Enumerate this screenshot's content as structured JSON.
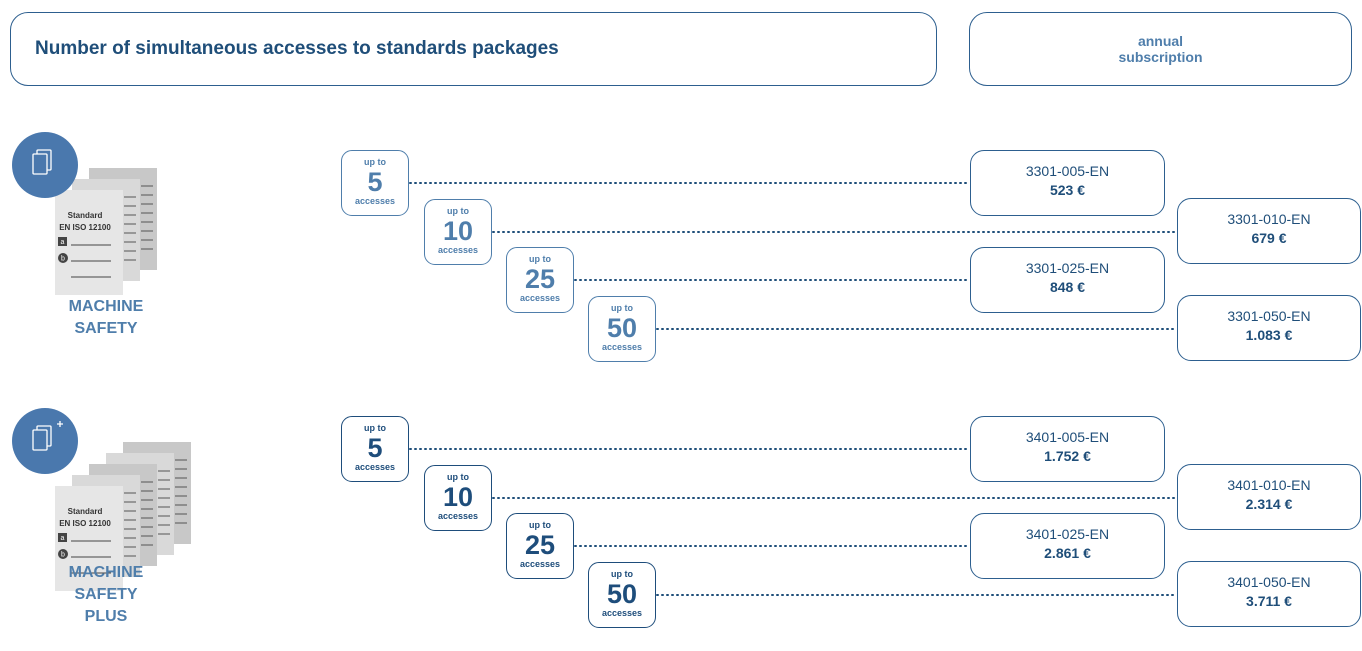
{
  "header": {
    "title": "Number of simultaneous accesses to standards packages",
    "subscription": "annual subscription"
  },
  "packages": [
    {
      "name": "MACHINE SAFETY",
      "document": {
        "label": "Standard",
        "standard": "EN ISO 12100",
        "item_a": "a",
        "item_b": "b"
      },
      "tiers": [
        {
          "prefix": "up to",
          "count": 5,
          "suffix": "accesses",
          "code": "3301-005-EN",
          "price": "523 €"
        },
        {
          "prefix": "up to",
          "count": 10,
          "suffix": "accesses",
          "code": "3301-010-EN",
          "price": "679 €"
        },
        {
          "prefix": "up to",
          "count": 25,
          "suffix": "accesses",
          "code": "3301-025-EN",
          "price": "848 €"
        },
        {
          "prefix": "up to",
          "count": 50,
          "suffix": "accesses",
          "code": "3301-050-EN",
          "price": "1.083 €"
        }
      ]
    },
    {
      "name": "MACHINE SAFETY PLUS",
      "document": {
        "label": "Standard",
        "standard": "EN ISO 12100",
        "item_a": "a",
        "item_b": "b"
      },
      "tiers": [
        {
          "prefix": "up to",
          "count": 5,
          "suffix": "accesses",
          "code": "3401-005-EN",
          "price": "1.752 €"
        },
        {
          "prefix": "up to",
          "count": 10,
          "suffix": "accesses",
          "code": "3401-010-EN",
          "price": "2.314 €"
        },
        {
          "prefix": "up to",
          "count": 25,
          "suffix": "accesses",
          "code": "3401-025-EN",
          "price": "2.861 €"
        },
        {
          "prefix": "up to",
          "count": 50,
          "suffix": "accesses",
          "code": "3401-050-EN",
          "price": "3.711 €"
        }
      ]
    }
  ]
}
